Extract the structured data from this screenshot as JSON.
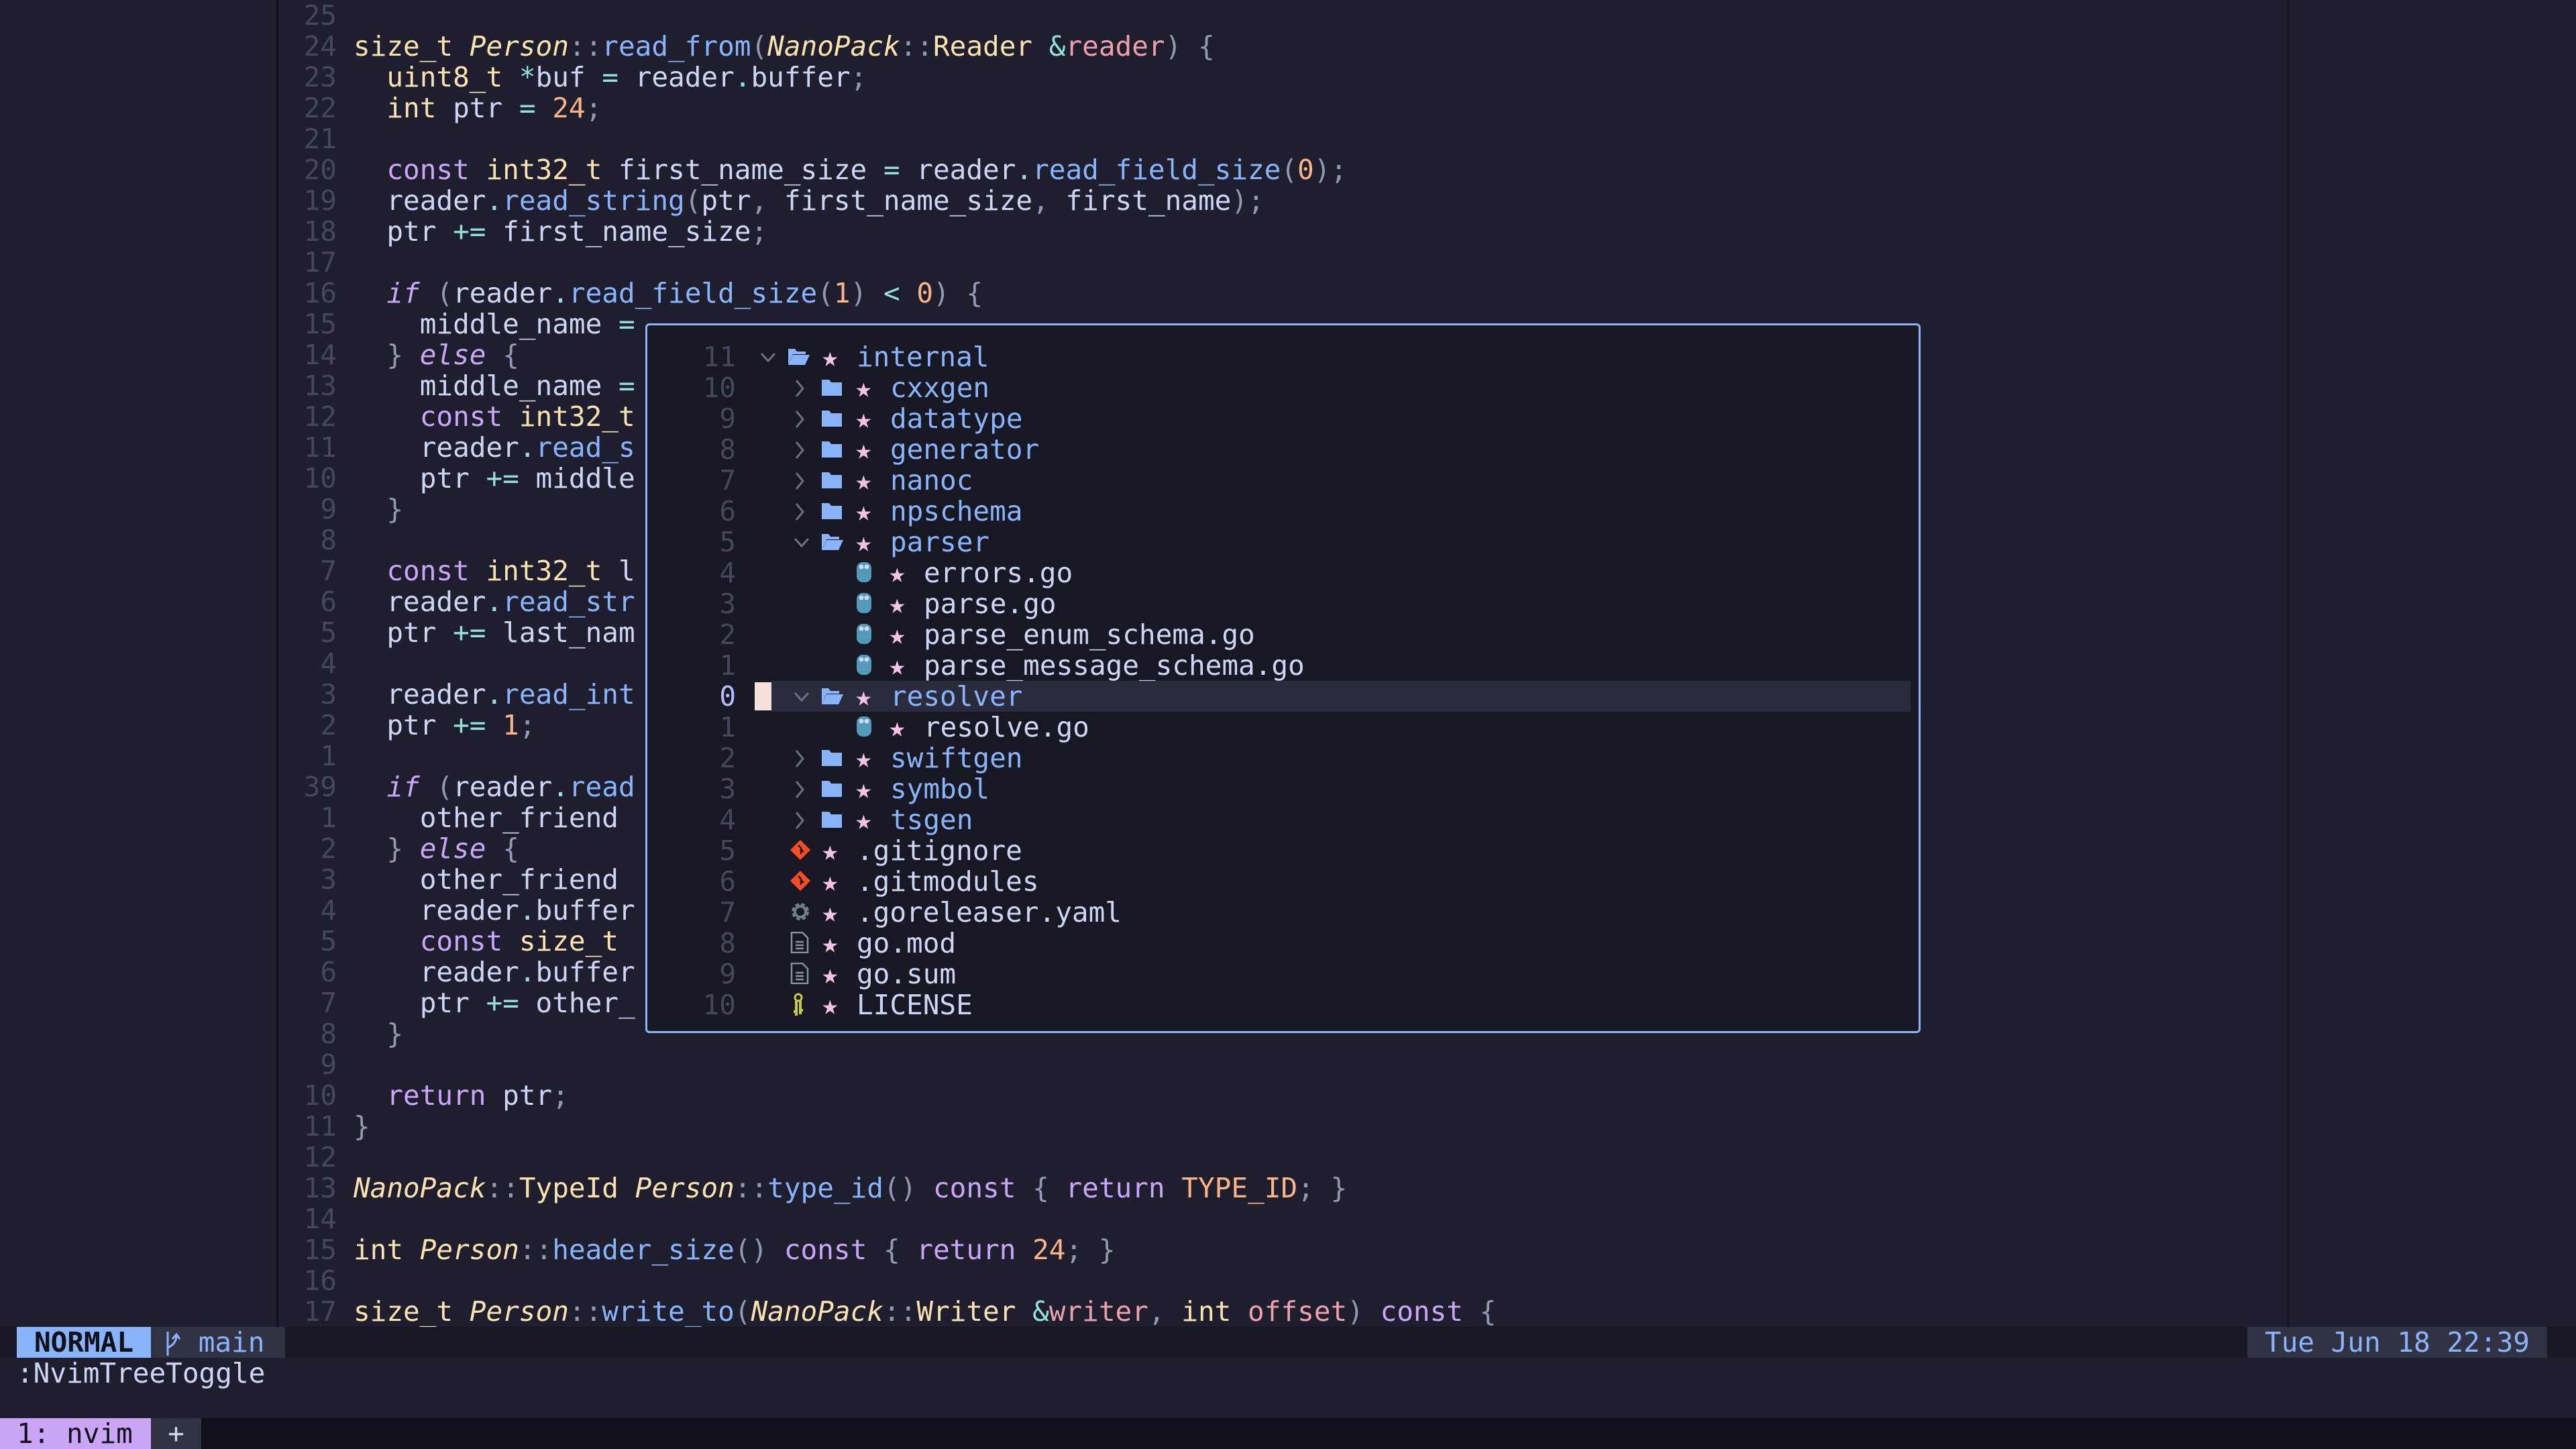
{
  "colors": {
    "bg": "#1e1e2e",
    "float_bg": "#181825",
    "border": "#89b4fa",
    "mode_bg": "#89b4fa",
    "tmux_tab_bg": "#cba6f7",
    "cursor": "#f5e0dc"
  },
  "editor": {
    "lines": [
      {
        "num": "25",
        "tokens": []
      },
      {
        "num": "24",
        "tokens": [
          [
            "t",
            "size_t"
          ],
          [
            "v",
            " "
          ],
          [
            "ti",
            "Person"
          ],
          [
            "p",
            "::"
          ],
          [
            "f",
            "read_from"
          ],
          [
            "p",
            "("
          ],
          [
            "ti",
            "NanoPack"
          ],
          [
            "p",
            "::"
          ],
          [
            "t",
            "Reader"
          ],
          [
            "v",
            " "
          ],
          [
            "o",
            "&"
          ],
          [
            "pr",
            "reader"
          ],
          [
            "p",
            ")"
          ],
          [
            "v",
            " "
          ],
          [
            "p",
            "{"
          ]
        ]
      },
      {
        "num": "23",
        "tokens": [
          [
            "v",
            "  "
          ],
          [
            "t",
            "uint8_t"
          ],
          [
            "v",
            " "
          ],
          [
            "o",
            "*"
          ],
          [
            "v",
            "buf "
          ],
          [
            "o",
            "="
          ],
          [
            "v",
            " reader"
          ],
          [
            "o",
            "."
          ],
          [
            "v",
            "buffer"
          ],
          [
            "p",
            ";"
          ]
        ]
      },
      {
        "num": "22",
        "tokens": [
          [
            "v",
            "  "
          ],
          [
            "t",
            "int"
          ],
          [
            "v",
            " ptr "
          ],
          [
            "o",
            "="
          ],
          [
            "v",
            " "
          ],
          [
            "n",
            "24"
          ],
          [
            "p",
            ";"
          ]
        ]
      },
      {
        "num": "21",
        "tokens": []
      },
      {
        "num": "20",
        "tokens": [
          [
            "v",
            "  "
          ],
          [
            "k",
            "const"
          ],
          [
            "v",
            " "
          ],
          [
            "t",
            "int32_t"
          ],
          [
            "v",
            " first_name_size "
          ],
          [
            "o",
            "="
          ],
          [
            "v",
            " reader"
          ],
          [
            "o",
            "."
          ],
          [
            "f",
            "read_field_size"
          ],
          [
            "p",
            "("
          ],
          [
            "n",
            "0"
          ],
          [
            "p",
            ");"
          ]
        ]
      },
      {
        "num": "19",
        "tokens": [
          [
            "v",
            "  reader"
          ],
          [
            "o",
            "."
          ],
          [
            "f",
            "read_string"
          ],
          [
            "p",
            "("
          ],
          [
            "v",
            "ptr"
          ],
          [
            "p",
            ","
          ],
          [
            "v",
            " first_name_size"
          ],
          [
            "p",
            ","
          ],
          [
            "v",
            " first_name"
          ],
          [
            "p",
            ");"
          ]
        ]
      },
      {
        "num": "18",
        "tokens": [
          [
            "v",
            "  ptr "
          ],
          [
            "o",
            "+="
          ],
          [
            "v",
            " first_name_size"
          ],
          [
            "p",
            ";"
          ]
        ]
      },
      {
        "num": "17",
        "tokens": []
      },
      {
        "num": "16",
        "tokens": [
          [
            "v",
            "  "
          ],
          [
            "ki",
            "if"
          ],
          [
            "v",
            " "
          ],
          [
            "p",
            "("
          ],
          [
            "v",
            "reader"
          ],
          [
            "o",
            "."
          ],
          [
            "f",
            "read_field_size"
          ],
          [
            "p",
            "("
          ],
          [
            "n",
            "1"
          ],
          [
            "p",
            ")"
          ],
          [
            "v",
            " "
          ],
          [
            "o",
            "<"
          ],
          [
            "v",
            " "
          ],
          [
            "n",
            "0"
          ],
          [
            "p",
            ")"
          ],
          [
            "v",
            " "
          ],
          [
            "p",
            "{"
          ]
        ]
      },
      {
        "num": "15",
        "tokens": [
          [
            "v",
            "    middle_name "
          ],
          [
            "o",
            "="
          ]
        ]
      },
      {
        "num": "14",
        "tokens": [
          [
            "v",
            "  "
          ],
          [
            "p",
            "}"
          ],
          [
            "v",
            " "
          ],
          [
            "ki",
            "else"
          ],
          [
            "v",
            " "
          ],
          [
            "p",
            "{"
          ]
        ]
      },
      {
        "num": "13",
        "tokens": [
          [
            "v",
            "    middle_name "
          ],
          [
            "o",
            "="
          ]
        ]
      },
      {
        "num": "12",
        "tokens": [
          [
            "v",
            "    "
          ],
          [
            "k",
            "const"
          ],
          [
            "v",
            " "
          ],
          [
            "t",
            "int32_t"
          ]
        ]
      },
      {
        "num": "11",
        "tokens": [
          [
            "v",
            "    reader"
          ],
          [
            "o",
            "."
          ],
          [
            "f",
            "read_s"
          ]
        ]
      },
      {
        "num": "10",
        "tokens": [
          [
            "v",
            "    ptr "
          ],
          [
            "o",
            "+="
          ],
          [
            "v",
            " middle"
          ]
        ]
      },
      {
        "num": "9",
        "tokens": [
          [
            "v",
            "  "
          ],
          [
            "p",
            "}"
          ]
        ]
      },
      {
        "num": "8",
        "tokens": []
      },
      {
        "num": "7",
        "tokens": [
          [
            "v",
            "  "
          ],
          [
            "k",
            "const"
          ],
          [
            "v",
            " "
          ],
          [
            "t",
            "int32_t"
          ],
          [
            "v",
            " l"
          ]
        ]
      },
      {
        "num": "6",
        "tokens": [
          [
            "v",
            "  reader"
          ],
          [
            "o",
            "."
          ],
          [
            "f",
            "read_str"
          ]
        ]
      },
      {
        "num": "5",
        "tokens": [
          [
            "v",
            "  ptr "
          ],
          [
            "o",
            "+="
          ],
          [
            "v",
            " last_nam"
          ]
        ]
      },
      {
        "num": "4",
        "tokens": []
      },
      {
        "num": "3",
        "tokens": [
          [
            "v",
            "  reader"
          ],
          [
            "o",
            "."
          ],
          [
            "f",
            "read_int"
          ]
        ]
      },
      {
        "num": "2",
        "tokens": [
          [
            "v",
            "  ptr "
          ],
          [
            "o",
            "+="
          ],
          [
            "v",
            " "
          ],
          [
            "n",
            "1"
          ],
          [
            "p",
            ";"
          ]
        ]
      },
      {
        "num": "1",
        "tokens": []
      },
      {
        "num": "39",
        "tokens": [
          [
            "v",
            "  "
          ],
          [
            "ki",
            "if"
          ],
          [
            "v",
            " "
          ],
          [
            "p",
            "("
          ],
          [
            "v",
            "reader"
          ],
          [
            "o",
            "."
          ],
          [
            "f",
            "read"
          ]
        ]
      },
      {
        "num": "1",
        "tokens": [
          [
            "v",
            "    other_friend"
          ]
        ]
      },
      {
        "num": "2",
        "tokens": [
          [
            "v",
            "  "
          ],
          [
            "p",
            "}"
          ],
          [
            "v",
            " "
          ],
          [
            "ki",
            "else"
          ],
          [
            "v",
            " "
          ],
          [
            "p",
            "{"
          ]
        ]
      },
      {
        "num": "3",
        "tokens": [
          [
            "v",
            "    other_friend"
          ]
        ]
      },
      {
        "num": "4",
        "tokens": [
          [
            "v",
            "    reader"
          ],
          [
            "o",
            "."
          ],
          [
            "v",
            "buffer"
          ]
        ]
      },
      {
        "num": "5",
        "tokens": [
          [
            "v",
            "    "
          ],
          [
            "k",
            "const"
          ],
          [
            "v",
            " "
          ],
          [
            "t",
            "size_t"
          ]
        ]
      },
      {
        "num": "6",
        "tokens": [
          [
            "v",
            "    reader"
          ],
          [
            "o",
            "."
          ],
          [
            "v",
            "buffer"
          ]
        ]
      },
      {
        "num": "7",
        "tokens": [
          [
            "v",
            "    ptr "
          ],
          [
            "o",
            "+="
          ],
          [
            "v",
            " other_"
          ]
        ]
      },
      {
        "num": "8",
        "tokens": [
          [
            "v",
            "  "
          ],
          [
            "p",
            "}"
          ]
        ]
      },
      {
        "num": "9",
        "tokens": []
      },
      {
        "num": "10",
        "tokens": [
          [
            "v",
            "  "
          ],
          [
            "k",
            "return"
          ],
          [
            "v",
            " ptr"
          ],
          [
            "p",
            ";"
          ]
        ]
      },
      {
        "num": "11",
        "tokens": [
          [
            "p",
            "}"
          ]
        ]
      },
      {
        "num": "12",
        "tokens": []
      },
      {
        "num": "13",
        "tokens": [
          [
            "ti",
            "NanoPack"
          ],
          [
            "p",
            "::"
          ],
          [
            "t",
            "TypeId"
          ],
          [
            "v",
            " "
          ],
          [
            "ti",
            "Person"
          ],
          [
            "p",
            "::"
          ],
          [
            "f",
            "type_id"
          ],
          [
            "p",
            "()"
          ],
          [
            "v",
            " "
          ],
          [
            "k",
            "const"
          ],
          [
            "v",
            " "
          ],
          [
            "p",
            "{"
          ],
          [
            "v",
            " "
          ],
          [
            "k",
            "return"
          ],
          [
            "v",
            " "
          ],
          [
            "c",
            "TYPE_ID"
          ],
          [
            "p",
            ";"
          ],
          [
            "v",
            " "
          ],
          [
            "p",
            "}"
          ]
        ]
      },
      {
        "num": "14",
        "tokens": []
      },
      {
        "num": "15",
        "tokens": [
          [
            "t",
            "int"
          ],
          [
            "v",
            " "
          ],
          [
            "ti",
            "Person"
          ],
          [
            "p",
            "::"
          ],
          [
            "f",
            "header_size"
          ],
          [
            "p",
            "()"
          ],
          [
            "v",
            " "
          ],
          [
            "k",
            "const"
          ],
          [
            "v",
            " "
          ],
          [
            "p",
            "{"
          ],
          [
            "v",
            " "
          ],
          [
            "k",
            "return"
          ],
          [
            "v",
            " "
          ],
          [
            "n",
            "24"
          ],
          [
            "p",
            ";"
          ],
          [
            "v",
            " "
          ],
          [
            "p",
            "}"
          ]
        ]
      },
      {
        "num": "16",
        "tokens": []
      },
      {
        "num": "17",
        "tokens": [
          [
            "t",
            "size_t"
          ],
          [
            "v",
            " "
          ],
          [
            "ti",
            "Person"
          ],
          [
            "p",
            "::"
          ],
          [
            "f",
            "write_to"
          ],
          [
            "p",
            "("
          ],
          [
            "ti",
            "NanoPack"
          ],
          [
            "p",
            "::"
          ],
          [
            "t",
            "Writer"
          ],
          [
            "v",
            " "
          ],
          [
            "o",
            "&"
          ],
          [
            "pr",
            "writer"
          ],
          [
            "p",
            ","
          ],
          [
            "v",
            " "
          ],
          [
            "t",
            "int"
          ],
          [
            "v",
            " "
          ],
          [
            "pr",
            "offset"
          ],
          [
            "p",
            ")"
          ],
          [
            "v",
            " "
          ],
          [
            "k",
            "const"
          ],
          [
            "v",
            " "
          ],
          [
            "p",
            "{"
          ]
        ]
      }
    ]
  },
  "tree": {
    "star": "★",
    "current_index": 11,
    "items": [
      {
        "num": "11",
        "level": 0,
        "kind": "dir",
        "open": true,
        "icon": "folder-open-icon",
        "name": "internal"
      },
      {
        "num": "10",
        "level": 1,
        "kind": "dir",
        "open": false,
        "icon": "folder-icon",
        "name": "cxxgen"
      },
      {
        "num": "9",
        "level": 1,
        "kind": "dir",
        "open": false,
        "icon": "folder-icon",
        "name": "datatype"
      },
      {
        "num": "8",
        "level": 1,
        "kind": "dir",
        "open": false,
        "icon": "folder-icon",
        "name": "generator"
      },
      {
        "num": "7",
        "level": 1,
        "kind": "dir",
        "open": false,
        "icon": "folder-icon",
        "name": "nanoc"
      },
      {
        "num": "6",
        "level": 1,
        "kind": "dir",
        "open": false,
        "icon": "folder-icon",
        "name": "npschema"
      },
      {
        "num": "5",
        "level": 1,
        "kind": "dir",
        "open": true,
        "icon": "folder-open-icon",
        "name": "parser"
      },
      {
        "num": "4",
        "level": 2,
        "kind": "file",
        "icon": "go-gopher-icon",
        "name": "errors.go"
      },
      {
        "num": "3",
        "level": 2,
        "kind": "file",
        "icon": "go-gopher-icon",
        "name": "parse.go"
      },
      {
        "num": "2",
        "level": 2,
        "kind": "file",
        "icon": "go-gopher-icon",
        "name": "parse_enum_schema.go"
      },
      {
        "num": "1",
        "level": 2,
        "kind": "file",
        "icon": "go-gopher-icon",
        "name": "parse_message_schema.go"
      },
      {
        "num": "0",
        "level": 1,
        "kind": "dir",
        "open": true,
        "icon": "folder-open-icon",
        "name": "resolver"
      },
      {
        "num": "1",
        "level": 2,
        "kind": "file",
        "icon": "go-gopher-icon",
        "name": "resolve.go"
      },
      {
        "num": "2",
        "level": 1,
        "kind": "dir",
        "open": false,
        "icon": "folder-icon",
        "name": "swiftgen"
      },
      {
        "num": "3",
        "level": 1,
        "kind": "dir",
        "open": false,
        "icon": "folder-icon",
        "name": "symbol"
      },
      {
        "num": "4",
        "level": 1,
        "kind": "dir",
        "open": false,
        "icon": "folder-icon",
        "name": "tsgen"
      },
      {
        "num": "5",
        "level": 0,
        "kind": "file",
        "icon": "git-icon",
        "name": ".gitignore"
      },
      {
        "num": "6",
        "level": 0,
        "kind": "file",
        "icon": "git-icon",
        "name": ".gitmodules"
      },
      {
        "num": "7",
        "level": 0,
        "kind": "file",
        "icon": "gear-icon",
        "name": ".goreleaser.yaml"
      },
      {
        "num": "8",
        "level": 0,
        "kind": "file",
        "icon": "document-icon",
        "name": "go.mod"
      },
      {
        "num": "9",
        "level": 0,
        "kind": "file",
        "icon": "document-icon",
        "name": "go.sum"
      },
      {
        "num": "10",
        "level": 0,
        "kind": "file",
        "icon": "key-icon",
        "name": "LICENSE"
      }
    ]
  },
  "statusline": {
    "mode": "NORMAL",
    "branch_icon": "git-branch-icon",
    "branch": "main",
    "clock": "Tue Jun 18 22:39"
  },
  "cmdline": ":NvimTreeToggle",
  "tmux": {
    "window": "1: nvim",
    "new_window": "+"
  }
}
